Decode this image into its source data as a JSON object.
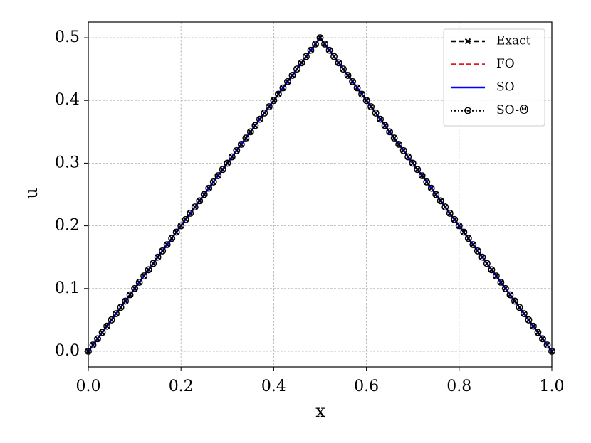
{
  "chart_data": {
    "type": "line",
    "xlabel": "x",
    "ylabel": "u",
    "xlim": [
      0,
      1
    ],
    "ylim": [
      -0.025,
      0.525
    ],
    "xticks": [
      {
        "value": 0,
        "label": "0.0"
      },
      0.2,
      0.4,
      0.6,
      0.8,
      {
        "value": 1,
        "label": "1.0"
      }
    ],
    "yticks": [
      {
        "value": 0,
        "label": "0.0"
      },
      0.1,
      0.2,
      0.3,
      0.4,
      0.5
    ],
    "grid": true,
    "legend": "upper right",
    "x": [
      0,
      0.01,
      0.02,
      0.03,
      0.04,
      0.05,
      0.06,
      0.07,
      0.08,
      0.09,
      0.1,
      0.11,
      0.12,
      0.13,
      0.14,
      0.15,
      0.16,
      0.17,
      0.18,
      0.19,
      0.2,
      0.21,
      0.22,
      0.23,
      0.24,
      0.25,
      0.26,
      0.27,
      0.28,
      0.29,
      0.3,
      0.31,
      0.32,
      0.33,
      0.34,
      0.35,
      0.36,
      0.37,
      0.38,
      0.39,
      0.4,
      0.41,
      0.42,
      0.43,
      0.44,
      0.45,
      0.46,
      0.47,
      0.48,
      0.49,
      0.5,
      0.51,
      0.52,
      0.53,
      0.54,
      0.55,
      0.56,
      0.57,
      0.58,
      0.59,
      0.6,
      0.61,
      0.62,
      0.63,
      0.64,
      0.65,
      0.66,
      0.67,
      0.68,
      0.69,
      0.7,
      0.71,
      0.72,
      0.73,
      0.74,
      0.75,
      0.76,
      0.77,
      0.78,
      0.79,
      0.8,
      0.81,
      0.82,
      0.83,
      0.84,
      0.85,
      0.86,
      0.87,
      0.88,
      0.89,
      0.9,
      0.91,
      0.92,
      0.93,
      0.94,
      0.95,
      0.96,
      0.97,
      0.98,
      0.99,
      1
    ],
    "series": [
      {
        "name": "Exact",
        "color": "#000000",
        "linestyle": "dashed",
        "marker": "x",
        "values": [
          0,
          0.01,
          0.02,
          0.03,
          0.04,
          0.05,
          0.06,
          0.07,
          0.08,
          0.09,
          0.1,
          0.11,
          0.12,
          0.13,
          0.14,
          0.15,
          0.16,
          0.17,
          0.18,
          0.19,
          0.2,
          0.21,
          0.22,
          0.23,
          0.24,
          0.25,
          0.26,
          0.27,
          0.28,
          0.29,
          0.3,
          0.31,
          0.32,
          0.33,
          0.34,
          0.35,
          0.36,
          0.37,
          0.38,
          0.39,
          0.4,
          0.41,
          0.42,
          0.43,
          0.44,
          0.45,
          0.46,
          0.47,
          0.48,
          0.49,
          0.5,
          0.49,
          0.48,
          0.47,
          0.46,
          0.45,
          0.44,
          0.43,
          0.42,
          0.41,
          0.4,
          0.39,
          0.38,
          0.37,
          0.36,
          0.35,
          0.34,
          0.33,
          0.32,
          0.31,
          0.3,
          0.29,
          0.28,
          0.27,
          0.26,
          0.25,
          0.24,
          0.23,
          0.22,
          0.21,
          0.2,
          0.19,
          0.18,
          0.17,
          0.16,
          0.15,
          0.14,
          0.13,
          0.12,
          0.11,
          0.1,
          0.09,
          0.08,
          0.07,
          0.06,
          0.05,
          0.04,
          0.03,
          0.02,
          0.01,
          0
        ]
      },
      {
        "name": "FO",
        "color": "#e41a1c",
        "linestyle": "dashed",
        "marker": "none",
        "values": [
          0,
          0.01,
          0.02,
          0.03,
          0.04,
          0.05,
          0.06,
          0.07,
          0.08,
          0.09,
          0.1,
          0.11,
          0.12,
          0.13,
          0.14,
          0.15,
          0.16,
          0.17,
          0.18,
          0.19,
          0.2,
          0.21,
          0.22,
          0.23,
          0.24,
          0.25,
          0.26,
          0.27,
          0.28,
          0.29,
          0.3,
          0.31,
          0.32,
          0.33,
          0.34,
          0.35,
          0.36,
          0.37,
          0.38,
          0.39,
          0.4,
          0.41,
          0.42,
          0.43,
          0.44,
          0.45,
          0.46,
          0.47,
          0.48,
          0.49,
          0.5,
          0.49,
          0.48,
          0.47,
          0.46,
          0.45,
          0.44,
          0.43,
          0.42,
          0.41,
          0.4,
          0.39,
          0.38,
          0.37,
          0.36,
          0.35,
          0.34,
          0.33,
          0.32,
          0.31,
          0.3,
          0.29,
          0.28,
          0.27,
          0.26,
          0.25,
          0.24,
          0.23,
          0.22,
          0.21,
          0.2,
          0.19,
          0.18,
          0.17,
          0.16,
          0.15,
          0.14,
          0.13,
          0.12,
          0.11,
          0.1,
          0.09,
          0.08,
          0.07,
          0.06,
          0.05,
          0.04,
          0.03,
          0.02,
          0.01,
          0
        ]
      },
      {
        "name": "SO",
        "color": "#0000ff",
        "linestyle": "solid",
        "marker": "none",
        "values": [
          0,
          0.01,
          0.02,
          0.03,
          0.04,
          0.05,
          0.06,
          0.07,
          0.08,
          0.09,
          0.1,
          0.11,
          0.12,
          0.13,
          0.14,
          0.15,
          0.16,
          0.17,
          0.18,
          0.19,
          0.2,
          0.21,
          0.22,
          0.23,
          0.24,
          0.25,
          0.26,
          0.27,
          0.28,
          0.29,
          0.3,
          0.31,
          0.32,
          0.33,
          0.34,
          0.35,
          0.36,
          0.37,
          0.38,
          0.39,
          0.4,
          0.41,
          0.42,
          0.43,
          0.44,
          0.45,
          0.46,
          0.47,
          0.48,
          0.49,
          0.5,
          0.49,
          0.48,
          0.47,
          0.46,
          0.45,
          0.44,
          0.43,
          0.42,
          0.41,
          0.4,
          0.39,
          0.38,
          0.37,
          0.36,
          0.35,
          0.34,
          0.33,
          0.32,
          0.31,
          0.3,
          0.29,
          0.28,
          0.27,
          0.26,
          0.25,
          0.24,
          0.23,
          0.22,
          0.21,
          0.2,
          0.19,
          0.18,
          0.17,
          0.16,
          0.15,
          0.14,
          0.13,
          0.12,
          0.11,
          0.1,
          0.09,
          0.08,
          0.07,
          0.06,
          0.05,
          0.04,
          0.03,
          0.02,
          0.01,
          0
        ]
      },
      {
        "name": "SO-Θ",
        "color": "#000000",
        "linestyle": "dotted",
        "marker": "circle-dot",
        "values": [
          0,
          0.01,
          0.02,
          0.03,
          0.04,
          0.05,
          0.06,
          0.07,
          0.08,
          0.09,
          0.1,
          0.11,
          0.12,
          0.13,
          0.14,
          0.15,
          0.16,
          0.17,
          0.18,
          0.19,
          0.2,
          0.21,
          0.22,
          0.23,
          0.24,
          0.25,
          0.26,
          0.27,
          0.28,
          0.29,
          0.3,
          0.31,
          0.32,
          0.33,
          0.34,
          0.35,
          0.36,
          0.37,
          0.38,
          0.39,
          0.4,
          0.41,
          0.42,
          0.43,
          0.44,
          0.45,
          0.46,
          0.47,
          0.48,
          0.49,
          0.5,
          0.49,
          0.48,
          0.47,
          0.46,
          0.45,
          0.44,
          0.43,
          0.42,
          0.41,
          0.4,
          0.39,
          0.38,
          0.37,
          0.36,
          0.35,
          0.34,
          0.33,
          0.32,
          0.31,
          0.3,
          0.29,
          0.28,
          0.27,
          0.26,
          0.25,
          0.24,
          0.23,
          0.22,
          0.21,
          0.2,
          0.19,
          0.18,
          0.17,
          0.16,
          0.15,
          0.14,
          0.13,
          0.12,
          0.11,
          0.1,
          0.09,
          0.08,
          0.07,
          0.06,
          0.05,
          0.04,
          0.03,
          0.02,
          0.01,
          0
        ]
      }
    ]
  }
}
